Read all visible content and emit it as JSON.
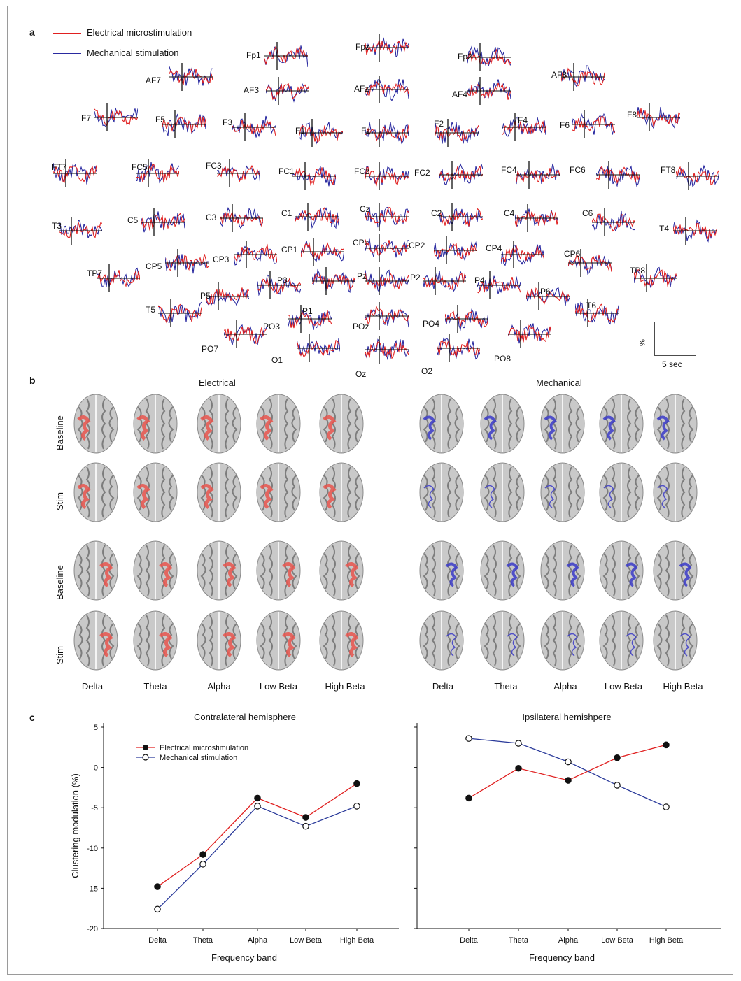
{
  "panel_a": {
    "label": "a",
    "legend": [
      {
        "name": "Electrical microstimulation",
        "color": "#e02020"
      },
      {
        "name": "Mechanical stimulation",
        "color": "#2a2aa0"
      }
    ],
    "channels": [
      "Fpz",
      "Fp1",
      "Fp2",
      "AF7",
      "AF3",
      "AFz",
      "AF4",
      "AF8",
      "F7",
      "F5",
      "F3",
      "F1",
      "Fz",
      "F2",
      "F4",
      "F6",
      "F8",
      "FT7",
      "FC5",
      "FC3",
      "FC1",
      "FCz",
      "FC2",
      "FC4",
      "FC6",
      "FT8",
      "T3",
      "C5",
      "C3",
      "C1",
      "Cz",
      "C2",
      "C4",
      "C6",
      "T4",
      "TP7",
      "CP5",
      "CP3",
      "CP1",
      "CPz",
      "CP2",
      "CP4",
      "CP6",
      "TP8",
      "T5",
      "P5",
      "P3",
      "P1",
      "Pz",
      "P2",
      "P4",
      "P6",
      "T6",
      "PO7",
      "PO3",
      "POz",
      "PO4",
      "PO8",
      "O1",
      "Oz",
      "O2"
    ],
    "scale_y": "%",
    "scale_x": "5 sec"
  },
  "panel_b": {
    "label": "b",
    "groups": [
      "Electrical",
      "Mechanical"
    ],
    "rows": [
      "Baseline",
      "Stim",
      "Baseline",
      "Stim"
    ],
    "bands": [
      "Delta",
      "Theta",
      "Alpha",
      "Low Beta",
      "High Beta"
    ],
    "colors": {
      "electrical": "#e8554e",
      "mechanical": "#3b3bc8"
    }
  },
  "panel_c": {
    "label": "c",
    "legend": [
      {
        "name": "Electrical microstimulation",
        "marker": "filled",
        "color": "#e02020"
      },
      {
        "name": "Mechanical stimulation",
        "marker": "open",
        "color": "#2a3a9a"
      }
    ]
  },
  "chart_data": [
    {
      "type": "line",
      "title": "Contralateral hemisphere",
      "xlabel": "Frequency band",
      "ylabel": "Clustering modulation (%)",
      "categories": [
        "Delta",
        "Theta",
        "Alpha",
        "Low Beta",
        "High Beta"
      ],
      "ylim": [
        -20,
        5
      ],
      "yticks": [
        5,
        0,
        -5,
        -10,
        -15,
        -20
      ],
      "series": [
        {
          "name": "Electrical microstimulation",
          "values": [
            -14.8,
            -10.8,
            -3.8,
            -6.2,
            -2.0
          ]
        },
        {
          "name": "Mechanical stimulation",
          "values": [
            -17.6,
            -12.0,
            -4.8,
            -7.3,
            -4.8
          ]
        }
      ]
    },
    {
      "type": "line",
      "title": "Ipsilateral hemishpere",
      "xlabel": "Frequency band",
      "ylabel": "",
      "categories": [
        "Delta",
        "Theta",
        "Alpha",
        "Low Beta",
        "High Beta"
      ],
      "ylim": [
        -20,
        5
      ],
      "series": [
        {
          "name": "Electrical microstimulation",
          "values": [
            -3.8,
            -0.1,
            -1.6,
            1.2,
            2.8
          ]
        },
        {
          "name": "Mechanical stimulation",
          "values": [
            3.6,
            3.0,
            0.7,
            -2.2,
            -4.9
          ]
        }
      ]
    }
  ]
}
